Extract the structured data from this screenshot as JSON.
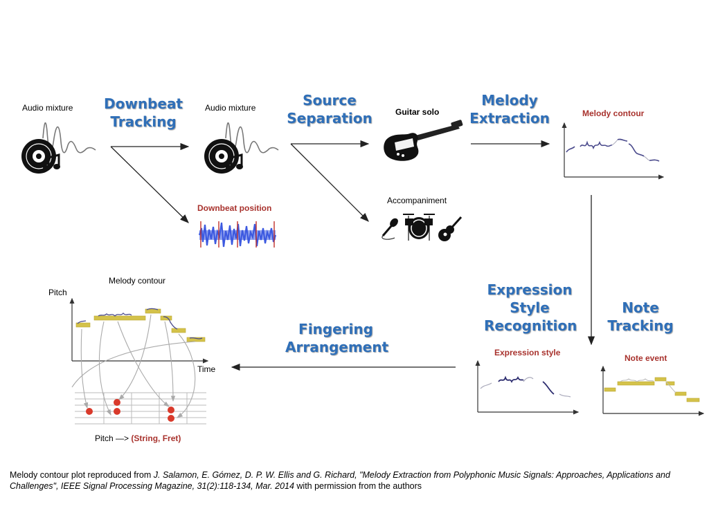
{
  "steps": {
    "downbeat": [
      "Downbeat",
      "Tracking"
    ],
    "source": [
      "Source",
      "Separation"
    ],
    "melody": [
      "Melody",
      "Extraction"
    ],
    "expression": [
      "Expression",
      "Style",
      "Recognition"
    ],
    "note": [
      "Note",
      "Tracking"
    ],
    "fingering": [
      "Fingering",
      "Arrangement"
    ]
  },
  "labels": {
    "audio_mixture_1": "Audio mixture",
    "audio_mixture_2": "Audio mixture",
    "guitar_solo": "Guitar solo",
    "accompaniment": "Accompaniment",
    "downbeat_position": "Downbeat position",
    "melody_contour_top": "Melody contour",
    "melody_contour_left": "Melody contour",
    "expression_style": "Expression style",
    "note_event": "Note event",
    "pitch": "Pitch",
    "time": "Time",
    "pitch_mapping_prefix": "Pitch —> ",
    "pitch_mapping_target": "(String, Fret)"
  },
  "caption": {
    "prefix": "Melody contour plot reproduced from ",
    "citation": "J. Salamon, E. Gómez, D. P. W. Ellis and G. Richard, \"Melody Extraction from Polyphonic Music Signals: Approaches, Applications and Challenges\", IEEE Signal Processing Magazine, 31(2):118-134, Mar. 2014",
    "suffix": " with permission from the authors"
  },
  "colors": {
    "step_blue": "#2f6fb8",
    "label_red": "#a8322d",
    "contour": "#4a4a8c",
    "note_bar": "#d4c24a",
    "fret_dot": "#d93a2b",
    "waveform": "#3d5ae0"
  },
  "icons": [
    "vinyl-music-icon",
    "electric-guitar-icon",
    "microphone-icon",
    "drum-kit-icon",
    "acoustic-guitar-icon"
  ]
}
